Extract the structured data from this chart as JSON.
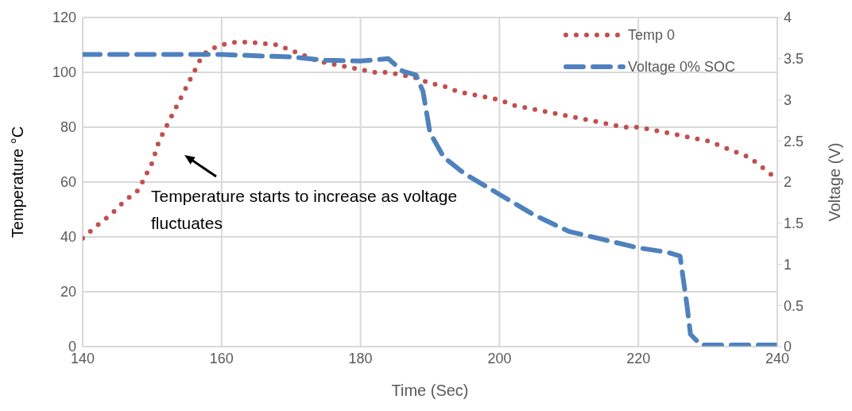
{
  "chart_data": {
    "type": "line",
    "xlabel": "Time (Sec)",
    "ylabel": "Temperature °C",
    "y2label": "Voltage (V)",
    "xlim": [
      140,
      240
    ],
    "xticks": [
      140,
      160,
      180,
      200,
      220,
      240
    ],
    "ylim": [
      0,
      120
    ],
    "yticks": [
      0,
      20,
      40,
      60,
      80,
      100,
      120
    ],
    "y2lim": [
      0,
      4
    ],
    "y2ticks": [
      0,
      0.5,
      1,
      1.5,
      2,
      2.5,
      3,
      3.5,
      4
    ],
    "grid": true,
    "legend": "top right",
    "marker": "none",
    "series": [
      {
        "name": "Temp 0",
        "color": "#c0504d",
        "line_style": "dotted",
        "x": [
          140,
          142,
          144,
          146,
          148,
          149,
          150,
          151,
          152,
          153,
          154,
          155,
          156,
          157,
          158,
          160,
          162,
          164,
          166,
          168,
          170,
          172,
          174,
          176,
          178,
          180,
          182,
          184,
          186,
          188,
          190,
          192,
          194,
          196,
          198,
          200,
          202,
          204,
          206,
          208,
          210,
          212,
          214,
          216,
          218,
          220,
          222,
          224,
          226,
          228,
          230,
          232,
          234,
          236,
          238,
          240
        ],
        "values": [
          39.5,
          44,
          48,
          53,
          57,
          62,
          67,
          75,
          80,
          85,
          90,
          95,
          100,
          105,
          108,
          110,
          111,
          111,
          110.5,
          110,
          108,
          106,
          104,
          103,
          102,
          101,
          100,
          100,
          99,
          98,
          96,
          95,
          93,
          92,
          91,
          90,
          88,
          87,
          86,
          85,
          84,
          83,
          82,
          81,
          80,
          80,
          79,
          78,
          77,
          76,
          75,
          73,
          71,
          69,
          65,
          61
        ]
      },
      {
        "name": "Voltage 0% SOC",
        "color": "#4f81bd",
        "line_style": "dashed",
        "axis": "y2",
        "x": [
          140,
          160,
          170,
          175,
          180,
          184,
          186,
          188,
          189,
          190,
          192,
          195,
          200,
          205,
          210,
          215,
          220,
          224,
          226,
          227,
          227.5,
          229,
          240
        ],
        "values": [
          3.55,
          3.55,
          3.52,
          3.48,
          3.47,
          3.5,
          3.35,
          3.3,
          3.1,
          2.6,
          2.3,
          2.1,
          1.85,
          1.6,
          1.4,
          1.3,
          1.2,
          1.15,
          1.1,
          0.5,
          0.15,
          0.02,
          0.02
        ]
      }
    ],
    "annotations": [
      "Temperature starts to increase as voltage fluctuates"
    ]
  }
}
